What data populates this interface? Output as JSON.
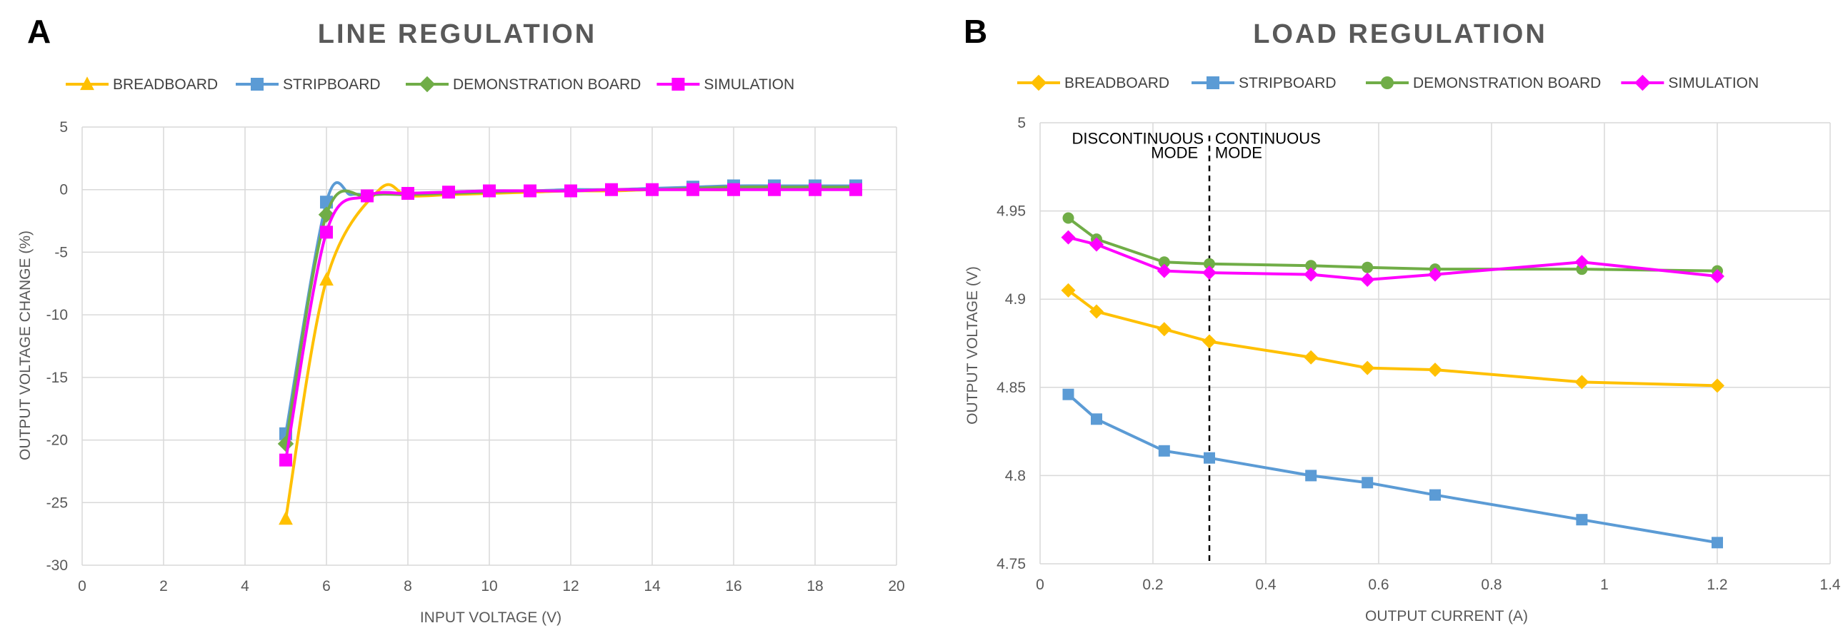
{
  "chart_data": [
    {
      "panel": "A",
      "type": "line",
      "title": "LINE REGULATION",
      "xlabel": "INPUT VOLTAGE (V)",
      "ylabel": "OUTPUT VOLTAGE CHANGE (%)",
      "xlim": [
        0,
        20
      ],
      "ylim": [
        -30,
        5
      ],
      "xticks": [
        0,
        2,
        4,
        6,
        8,
        10,
        12,
        14,
        16,
        18,
        20
      ],
      "yticks": [
        5,
        0,
        -5,
        -10,
        -15,
        -20,
        -25,
        -30
      ],
      "ytick_labels": [
        "5",
        "0",
        "-5",
        "-10",
        "-15",
        "-20",
        "-25",
        "-30"
      ],
      "grid": true,
      "legend_position": "top",
      "series": [
        {
          "name": "BREADBOARD",
          "color": "#FFC000",
          "marker": "triangle",
          "x": [
            5,
            6,
            7.3,
            8,
            9,
            10,
            11,
            12,
            13,
            14,
            15,
            16,
            17,
            18,
            19
          ],
          "y": [
            -26.3,
            -7.2,
            0.0,
            -0.5,
            -0.4,
            -0.3,
            -0.2,
            -0.1,
            -0.1,
            0.0,
            0.0,
            0.0,
            0.1,
            0.1,
            0.1
          ],
          "marker_x": [
            5,
            6
          ],
          "marker_y": [
            -26.3,
            -7.2
          ]
        },
        {
          "name": "STRIPBOARD",
          "color": "#5B9BD5",
          "marker": "square",
          "x": [
            5,
            6,
            6.6,
            7,
            8,
            9,
            10,
            11,
            12,
            13,
            14,
            15,
            16,
            17,
            18,
            19
          ],
          "y": [
            -19.5,
            -1.0,
            -0.4,
            -0.4,
            -0.3,
            -0.2,
            -0.1,
            -0.1,
            0.0,
            0.0,
            0.1,
            0.2,
            0.3,
            0.3,
            0.3,
            0.3
          ],
          "marker_x": [
            5,
            6,
            15,
            16,
            17,
            18,
            19
          ],
          "marker_y": [
            -19.5,
            -1.0,
            0.2,
            0.3,
            0.3,
            0.3,
            0.3
          ]
        },
        {
          "name": "DEMONSTRATION BOARD",
          "color": "#70AD47",
          "marker": "diamond",
          "x": [
            5,
            6,
            7,
            8,
            9,
            10,
            11,
            12,
            13,
            14,
            15,
            16,
            17,
            18,
            19
          ],
          "y": [
            -20.3,
            -2.0,
            -0.5,
            -0.4,
            -0.3,
            -0.2,
            -0.1,
            -0.1,
            0.0,
            0.0,
            0.1,
            0.2,
            0.2,
            0.2,
            0.2
          ],
          "marker_x": [
            5,
            6
          ],
          "marker_y": [
            -20.3,
            -2.0
          ]
        },
        {
          "name": "SIMULATION",
          "color": "#FF00FF",
          "marker": "square",
          "x": [
            5,
            6,
            7,
            8,
            9,
            10,
            11,
            12,
            13,
            14,
            15,
            16,
            17,
            18,
            19
          ],
          "y": [
            -21.6,
            -3.4,
            -0.5,
            -0.3,
            -0.2,
            -0.1,
            -0.1,
            -0.1,
            0.0,
            0.0,
            0.0,
            0.0,
            0.0,
            0.0,
            0.0
          ],
          "marker_x": [
            5,
            6,
            7,
            8,
            9,
            10,
            11,
            12,
            13,
            14,
            15,
            16,
            17,
            18,
            19
          ],
          "marker_y": [
            -21.6,
            -3.4,
            -0.5,
            -0.3,
            -0.2,
            -0.1,
            -0.1,
            -0.1,
            0.0,
            0.0,
            0.0,
            0.0,
            0.0,
            0.0,
            0.0
          ]
        }
      ]
    },
    {
      "panel": "B",
      "type": "line",
      "title": "LOAD REGULATION",
      "xlabel": "OUTPUT CURRENT (A)",
      "ylabel": "OUTPUT VOLTAGE (V)",
      "xlim": [
        0,
        1.4
      ],
      "ylim": [
        4.75,
        5
      ],
      "xticks": [
        0,
        0.2,
        0.4,
        0.6,
        0.8,
        1,
        1.2,
        1.4
      ],
      "xtick_labels": [
        "0",
        "0.2",
        "0.4",
        "0.6",
        "0.8",
        "1",
        "1.2",
        "1.4"
      ],
      "yticks": [
        5,
        4.95,
        4.9,
        4.85,
        4.8,
        4.75
      ],
      "ytick_labels": [
        "5",
        "4.95",
        "4.9",
        "4.85",
        "4.8",
        "4.75"
      ],
      "grid": true,
      "legend_position": "top",
      "annotations": [
        {
          "text": "DISCONTINUOUS",
          "x": 0.29,
          "y": 4.988,
          "anchor": "end"
        },
        {
          "text": "MODE",
          "x": 0.28,
          "y": 4.98,
          "anchor": "end"
        },
        {
          "text": "CONTINUOUS",
          "x": 0.31,
          "y": 4.988,
          "anchor": "start"
        },
        {
          "text": "MODE",
          "x": 0.31,
          "y": 4.98,
          "anchor": "start"
        }
      ],
      "boundary_x": 0.3,
      "series": [
        {
          "name": "BREADBOARD",
          "color": "#FFC000",
          "marker": "diamond",
          "x": [
            0.05,
            0.1,
            0.22,
            0.3,
            0.48,
            0.58,
            0.7,
            0.96,
            1.2
          ],
          "y": [
            4.905,
            4.893,
            4.883,
            4.876,
            4.867,
            4.861,
            4.86,
            4.853,
            4.851
          ]
        },
        {
          "name": "STRIPBOARD",
          "color": "#5B9BD5",
          "marker": "square",
          "x": [
            0.05,
            0.1,
            0.22,
            0.3,
            0.48,
            0.58,
            0.7,
            0.96,
            1.2
          ],
          "y": [
            4.846,
            4.832,
            4.814,
            4.81,
            4.8,
            4.796,
            4.789,
            4.775,
            4.762
          ]
        },
        {
          "name": "DEMONSTRATION BOARD",
          "color": "#70AD47",
          "marker": "circle",
          "x": [
            0.05,
            0.1,
            0.22,
            0.3,
            0.48,
            0.58,
            0.7,
            0.96,
            1.2
          ],
          "y": [
            4.946,
            4.934,
            4.921,
            4.92,
            4.919,
            4.918,
            4.917,
            4.917,
            4.916
          ]
        },
        {
          "name": "SIMULATION",
          "color": "#FF00FF",
          "marker": "diamond",
          "x": [
            0.05,
            0.1,
            0.22,
            0.3,
            0.48,
            0.58,
            0.7,
            0.96,
            1.2
          ],
          "y": [
            4.935,
            4.931,
            4.916,
            4.915,
            4.914,
            4.911,
            4.914,
            4.921,
            4.913
          ]
        }
      ]
    }
  ]
}
